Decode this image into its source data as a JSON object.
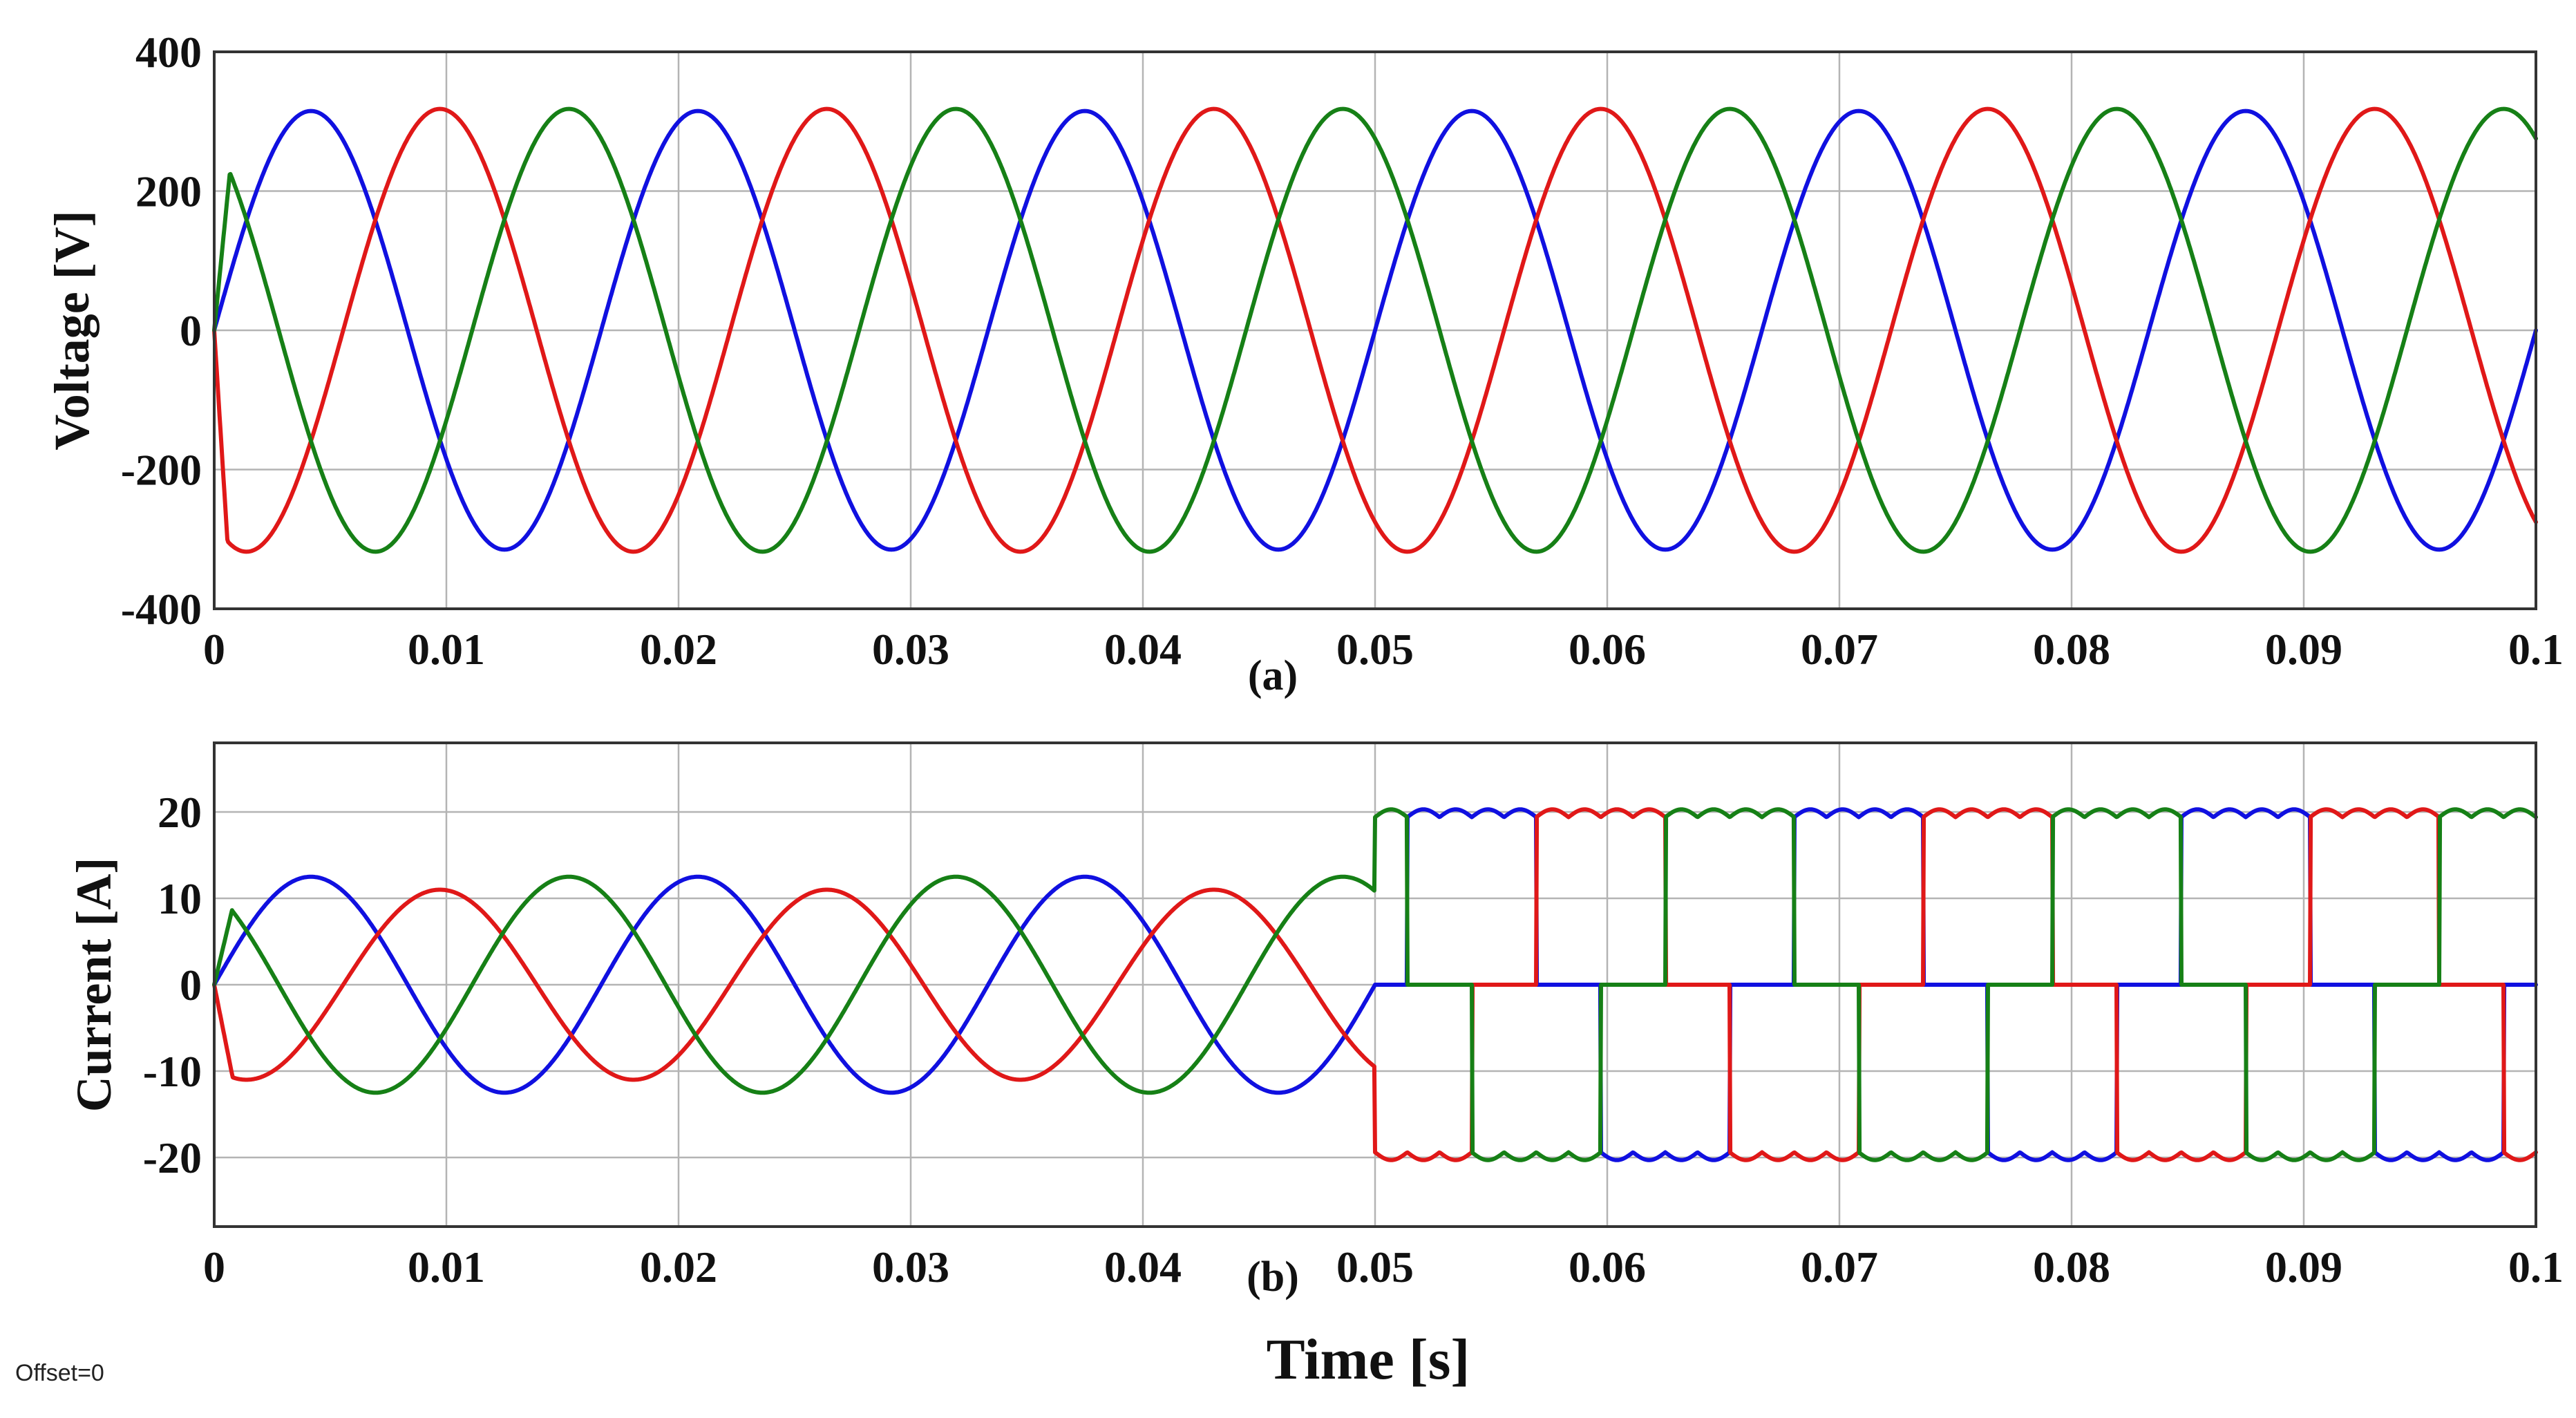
{
  "chart_data": [
    {
      "type": "line",
      "subplot_label": "(a)",
      "xlabel": "",
      "ylabel": "Voltage [V]",
      "xlim": [
        0,
        0.1
      ],
      "ylim": [
        -400,
        400
      ],
      "x_ticks": [
        "0",
        "0.01",
        "0.02",
        "0.03",
        "0.04",
        "0.05",
        "0.06",
        "0.07",
        "0.08",
        "0.09",
        "0.1"
      ],
      "y_ticks": [
        "400",
        "200",
        "0",
        "-200",
        "-400"
      ],
      "grid": true,
      "colors": {
        "blue": "#1010e0",
        "red": "#e01818",
        "green": "#168016"
      },
      "series": [
        {
          "color": "blue",
          "waveform": "sine",
          "frequency_hz": 60,
          "amplitude": 315,
          "phase_deg": 0,
          "start": {
            "x": 0,
            "y": 0
          }
        },
        {
          "color": "red",
          "waveform": "sine",
          "frequency_hz": 60,
          "amplitude": 318,
          "phase_deg": -120,
          "start": {
            "x": 0,
            "y": 0
          },
          "initial_transient": {
            "x": 0.0006,
            "y": -318
          }
        },
        {
          "color": "green",
          "waveform": "sine",
          "frequency_hz": 60,
          "amplitude": 318,
          "phase_deg": 120,
          "start": {
            "x": 0,
            "y": 0
          },
          "initial_transient": {
            "x": 0.0007,
            "y": 235
          }
        }
      ]
    },
    {
      "type": "line",
      "subplot_label": "(b)",
      "xlabel": "Time [s]",
      "ylabel": "Current [A]",
      "xlim": [
        0,
        0.1
      ],
      "ylim": [
        -28,
        28
      ],
      "x_ticks": [
        "0",
        "0.01",
        "0.02",
        "0.03",
        "0.04",
        "0.05",
        "0.06",
        "0.07",
        "0.08",
        "0.09",
        "0.1"
      ],
      "y_ticks": [
        "20",
        "10",
        "0",
        "-10",
        "-20"
      ],
      "grid": true,
      "colors": {
        "blue": "#1010e0",
        "red": "#e01818",
        "green": "#168016"
      },
      "regime_change_at": 0.05,
      "series": [
        {
          "color": "blue",
          "interval_1": {
            "x": [
              0,
              0.05
            ],
            "waveform": "sine",
            "frequency_hz": 60,
            "amplitude": 12.5,
            "phase_deg": 0
          },
          "interval_2": {
            "x": [
              0.05,
              0.1
            ],
            "waveform": "six-step",
            "frequency_hz": 60,
            "level": 21,
            "phase_deg": 0
          }
        },
        {
          "color": "red",
          "interval_1": {
            "x": [
              0,
              0.05
            ],
            "waveform": "sine",
            "frequency_hz": 60,
            "amplitude": 11,
            "phase_deg": -120,
            "initial_transient": {
              "x": 0.0008,
              "y": -10.8
            }
          },
          "interval_2": {
            "x": [
              0.05,
              0.1
            ],
            "waveform": "six-step",
            "frequency_hz": 60,
            "level": 21,
            "phase_deg": -120
          }
        },
        {
          "color": "green",
          "interval_1": {
            "x": [
              0,
              0.05
            ],
            "waveform": "sine",
            "frequency_hz": 60,
            "amplitude": 12.5,
            "phase_deg": 120,
            "initial_transient": {
              "x": 0.0008,
              "y": 9
            }
          },
          "interval_2": {
            "x": [
              0.05,
              0.1
            ],
            "waveform": "six-step",
            "frequency_hz": 60,
            "level": 21,
            "phase_deg": 120
          }
        }
      ]
    }
  ],
  "footer": {
    "offset_label": "Offset=0"
  }
}
